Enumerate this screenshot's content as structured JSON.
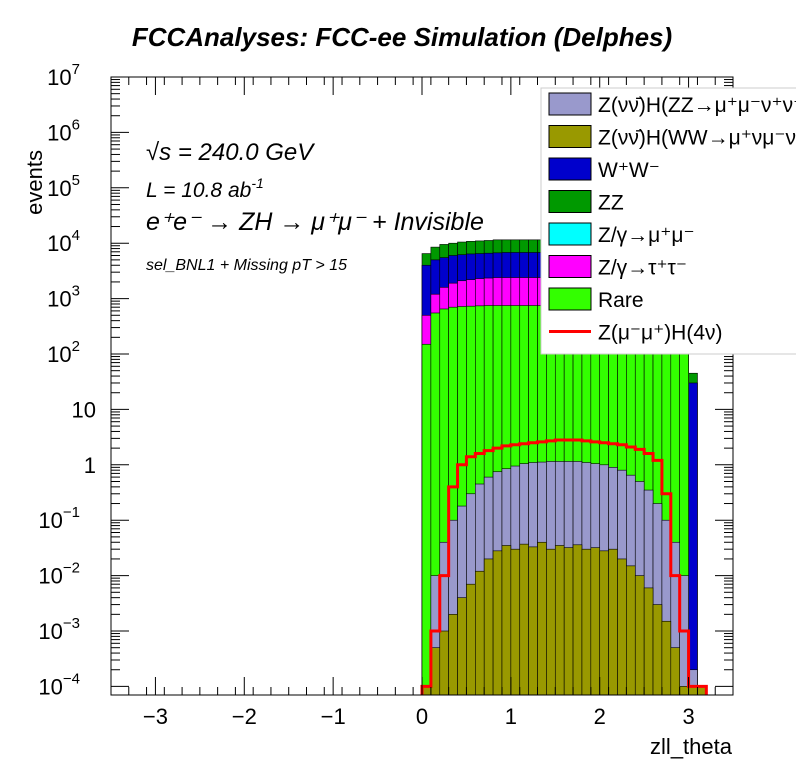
{
  "chart_data": {
    "type": "bar",
    "title": "FCCAnalyses: FCC-ee Simulation (Delphes)",
    "xlabel": "zll_theta",
    "ylabel": "events",
    "xlim": [
      -3.5,
      3.5
    ],
    "ylim": [
      7e-05,
      10000000
    ],
    "y_scale": "log",
    "grid": false,
    "legend_position": "top-right",
    "x_ticks": [
      -3,
      -2,
      -1,
      0,
      1,
      2,
      3
    ],
    "x_tick_labels": [
      "−3",
      "−2",
      "−1",
      "0",
      "1",
      "2",
      "3"
    ],
    "y_ticks": [
      {
        "value": 0.0001,
        "base": "10",
        "exp": "−4"
      },
      {
        "value": 0.001,
        "base": "10",
        "exp": "−3"
      },
      {
        "value": 0.01,
        "base": "10",
        "exp": "−2"
      },
      {
        "value": 0.1,
        "base": "10",
        "exp": "−1"
      },
      {
        "value": 1,
        "base": "1",
        "exp": ""
      },
      {
        "value": 10,
        "base": "10",
        "exp": ""
      },
      {
        "value": 100,
        "base": "10",
        "exp": "2"
      },
      {
        "value": 1000,
        "base": "10",
        "exp": "3"
      },
      {
        "value": 10000,
        "base": "10",
        "exp": "4"
      },
      {
        "value": 100000,
        "base": "10",
        "exp": "5"
      },
      {
        "value": 1000000,
        "base": "10",
        "exp": "6"
      },
      {
        "value": 10000000,
        "base": "10",
        "exp": "7"
      }
    ],
    "bin_edges": [
      0.0,
      0.1,
      0.2,
      0.3,
      0.4,
      0.5,
      0.6,
      0.7,
      0.8,
      0.9,
      1.0,
      1.1,
      1.2,
      1.3,
      1.4,
      1.5,
      1.6,
      1.7,
      1.8,
      1.9,
      2.0,
      2.1,
      2.2,
      2.3,
      2.4,
      2.5,
      2.6,
      2.7,
      2.8,
      2.9,
      3.0,
      3.1,
      3.2
    ],
    "stack_cumulative": [
      {
        "name": "Z(νν̄)H(ZZ→μ⁺μ⁻ν⁺ν⁻)",
        "color": "#9999cc",
        "values": [
          0.0001,
          0.01,
          0.04,
          0.1,
          0.18,
          0.3,
          0.45,
          0.6,
          0.75,
          0.85,
          0.95,
          1.05,
          1.1,
          1.12,
          1.15,
          1.15,
          1.15,
          1.15,
          1.1,
          1.05,
          1.0,
          0.9,
          0.8,
          0.65,
          0.5,
          0.35,
          0.2,
          0.1,
          0.04,
          0.01,
          0.0002,
          0.0001
        ]
      },
      {
        "name": "Z(νν̄)H(WW→μ⁺νμ⁻ν)",
        "color": "#999900",
        "values": [
          0.0001,
          0.0005,
          0.001,
          0.002,
          0.004,
          0.007,
          0.012,
          0.02,
          0.028,
          0.035,
          0.03,
          0.037,
          0.033,
          0.04,
          0.03,
          0.035,
          0.032,
          0.036,
          0.03,
          0.032,
          0.028,
          0.03,
          0.02,
          0.015,
          0.01,
          0.006,
          0.003,
          0.0015,
          0.0005,
          0.0001,
          0.0001,
          0.0001
        ]
      },
      {
        "name": "W⁺W⁻",
        "color": "#0000cc",
        "values": [
          4000,
          5000,
          5500,
          6000,
          6200,
          6400,
          6500,
          6600,
          6700,
          6800,
          6800,
          6800,
          6800,
          6800,
          6800,
          6800,
          6800,
          6800,
          6800,
          6800,
          6700,
          6600,
          6500,
          6400,
          6200,
          6000,
          5800,
          5500,
          5000,
          4000,
          30,
          0.0001
        ]
      },
      {
        "name": "ZZ",
        "color": "#009900",
        "values": [
          6500,
          8500,
          9500,
          10000,
          10500,
          10800,
          11000,
          11200,
          11500,
          11500,
          11500,
          11500,
          11500,
          11500,
          11500,
          11500,
          11500,
          11500,
          11500,
          11500,
          11500,
          11200,
          11000,
          10800,
          10500,
          10000,
          9500,
          9000,
          8500,
          6500,
          45,
          0.0001
        ]
      },
      {
        "name": "Z/γ→μ⁺μ⁻",
        "color": "#00ffff",
        "values": [
          0.0001,
          0.0001,
          0.0001,
          0.0001,
          0.0001,
          0.0001,
          0.0001,
          0.0001,
          0.0001,
          0.0001,
          0.0001,
          0.0001,
          0.0001,
          0.0001,
          0.0001,
          0.0001,
          0.0001,
          0.0001,
          0.0001,
          0.0001,
          0.0001,
          0.0001,
          0.0001,
          0.0001,
          0.0001,
          0.0001,
          0.0001,
          0.0001,
          0.0001,
          0.0001,
          0.0001,
          0.0001
        ]
      },
      {
        "name": "Z/γ→τ⁺τ⁻",
        "color": "#ff00ff",
        "values": [
          500,
          1200,
          1600,
          1900,
          2100,
          2200,
          2300,
          2350,
          2400,
          2400,
          2400,
          2400,
          2400,
          2400,
          2400,
          2400,
          2400,
          2400,
          2400,
          2400,
          2350,
          2300,
          2250,
          2200,
          2100,
          2000,
          1900,
          1700,
          1400,
          600,
          0.0001,
          0.0001
        ]
      },
      {
        "name": "Rare",
        "color": "#33ff00",
        "values": [
          150,
          550,
          650,
          700,
          720,
          730,
          740,
          750,
          750,
          750,
          750,
          750,
          750,
          750,
          750,
          750,
          750,
          750,
          750,
          750,
          750,
          740,
          730,
          720,
          700,
          680,
          650,
          600,
          500,
          180,
          0.0001,
          0.0001
        ]
      }
    ],
    "series": [
      {
        "name": "Z(μ⁻μ⁺)H(4ν)",
        "color": "#ff0000",
        "style": "line",
        "values": [
          0.0001,
          0.001,
          0.01,
          0.4,
          1.0,
          1.4,
          1.6,
          1.8,
          2.0,
          2.2,
          2.3,
          2.4,
          2.5,
          2.6,
          2.7,
          2.8,
          2.8,
          2.8,
          2.7,
          2.6,
          2.5,
          2.4,
          2.3,
          2.1,
          1.9,
          1.6,
          1.2,
          0.3,
          0.01,
          0.001,
          0.0001,
          0.0001
        ]
      }
    ],
    "annotations": [
      {
        "text": "√s = 240.0 GeV"
      },
      {
        "text": "L = 10.8 ab",
        "sup": "-1"
      },
      {
        "text": "e⁺e⁻ → ZH → μ⁺μ⁻ + Invisible"
      },
      {
        "text": "sel_BNL1 + Missing pT > 15"
      }
    ],
    "legend": [
      {
        "name": "Z(νν̄)H(ZZ→μ⁺μ⁻ν⁺ν⁻)",
        "color": "#9999cc",
        "kind": "box"
      },
      {
        "name": "Z(νν̄)H(WW→μ⁺νμ⁻ν)",
        "color": "#999900",
        "kind": "box"
      },
      {
        "name": "W⁺W⁻",
        "color": "#0000cc",
        "kind": "box"
      },
      {
        "name": "ZZ",
        "color": "#009900",
        "kind": "box"
      },
      {
        "name": "Z/γ→μ⁺μ⁻",
        "color": "#00ffff",
        "kind": "box"
      },
      {
        "name": "Z/γ→τ⁺τ⁻",
        "color": "#ff00ff",
        "kind": "box"
      },
      {
        "name": "Rare",
        "color": "#33ff00",
        "kind": "box"
      },
      {
        "name": "Z(μ⁻μ⁺)H(4ν)",
        "color": "#ff0000",
        "kind": "line"
      }
    ]
  }
}
